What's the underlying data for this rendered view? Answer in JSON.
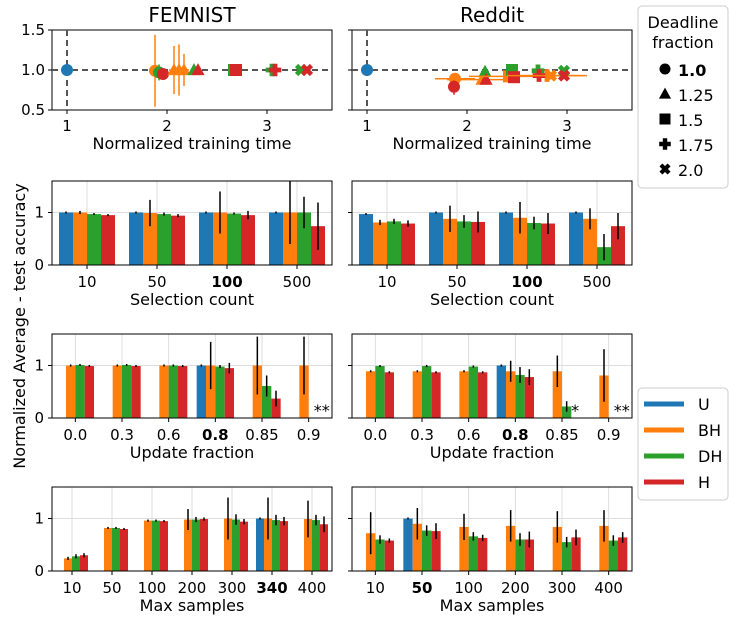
{
  "colors": {
    "U": "#1f77b4",
    "BH": "#ff7f0e",
    "DH": "#2ca02c",
    "H": "#d62728",
    "grid": "#dddddd",
    "refline": "#555555"
  },
  "figure": {
    "ylabel_shared": "Normalized Average - test accuracy",
    "row0_titles": [
      "FEMNIST",
      "Reddit"
    ],
    "deadline_legend": {
      "title_lines": [
        "Deadline",
        "fraction"
      ],
      "items": [
        {
          "marker": "circle",
          "label": "1.0",
          "bold": true
        },
        {
          "marker": "triangle",
          "label": "1.25",
          "bold": false
        },
        {
          "marker": "square",
          "label": "1.5",
          "bold": false
        },
        {
          "marker": "plus",
          "label": "1.75",
          "bold": false
        },
        {
          "marker": "x",
          "label": "2.0",
          "bold": false
        }
      ]
    },
    "method_legend": {
      "items": [
        {
          "key": "U",
          "label": "U"
        },
        {
          "key": "BH",
          "label": "BH"
        },
        {
          "key": "DH",
          "label": "DH"
        },
        {
          "key": "H",
          "label": "H"
        }
      ]
    }
  },
  "chart_data": [
    {
      "type": "scatter",
      "title": "FEMNIST",
      "xlabel": "Normalized training time",
      "ylabel": "",
      "xlim": [
        0.85,
        3.65
      ],
      "ylim": [
        0.5,
        1.5
      ],
      "xticks": [
        "1",
        "2",
        "3"
      ],
      "xtick_values": [
        1,
        2,
        3
      ],
      "yticks": [
        "0.5",
        "1.0",
        "1.5"
      ],
      "ytick_values": [
        0.5,
        1.0,
        1.5
      ],
      "reference_lines": {
        "x": 1.0,
        "y": 1.0
      },
      "points": [
        {
          "method": "U",
          "marker": "circle",
          "x": 1.0,
          "y": 1.0,
          "xerr": 0,
          "yerr": 0
        },
        {
          "method": "BH",
          "marker": "circle",
          "x": 1.88,
          "y": 0.99,
          "xerr": 0.05,
          "yerr": 0.45
        },
        {
          "method": "DH",
          "marker": "circle",
          "x": 1.92,
          "y": 0.97,
          "xerr": 0.04,
          "yerr": 0.1
        },
        {
          "method": "H",
          "marker": "circle",
          "x": 1.96,
          "y": 0.95,
          "xerr": 0.04,
          "yerr": 0.05
        },
        {
          "method": "BH",
          "marker": "triangle",
          "x": 2.07,
          "y": 1.0,
          "xerr": 0.05,
          "yerr": 0.3
        },
        {
          "method": "BH",
          "marker": "triangle",
          "x": 2.12,
          "y": 1.0,
          "xerr": 0.05,
          "yerr": 0.32
        },
        {
          "method": "BH",
          "marker": "triangle",
          "x": 2.17,
          "y": 1.0,
          "xerr": 0.05,
          "yerr": 0.2
        },
        {
          "method": "DH",
          "marker": "triangle",
          "x": 2.27,
          "y": 1.0,
          "xerr": 0.03,
          "yerr": 0.03
        },
        {
          "method": "H",
          "marker": "triangle",
          "x": 2.31,
          "y": 1.0,
          "xerr": 0.03,
          "yerr": 0.03
        },
        {
          "method": "DH",
          "marker": "square",
          "x": 2.67,
          "y": 1.0,
          "xerr": 0.04,
          "yerr": 0.02
        },
        {
          "method": "H",
          "marker": "square",
          "x": 2.69,
          "y": 1.0,
          "xerr": 0.04,
          "yerr": 0.02
        },
        {
          "method": "DH",
          "marker": "plus",
          "x": 3.05,
          "y": 1.0,
          "xerr": 0.04,
          "yerr": 0.02
        },
        {
          "method": "H",
          "marker": "plus",
          "x": 3.08,
          "y": 1.0,
          "xerr": 0.04,
          "yerr": 0.02
        },
        {
          "method": "DH",
          "marker": "x",
          "x": 3.34,
          "y": 1.0,
          "xerr": 0.03,
          "yerr": 0.02
        },
        {
          "method": "H",
          "marker": "x",
          "x": 3.4,
          "y": 1.0,
          "xerr": 0.03,
          "yerr": 0.02
        }
      ]
    },
    {
      "type": "scatter",
      "title": "Reddit",
      "xlabel": "Normalized training time",
      "ylabel": "",
      "xlim": [
        0.85,
        3.65
      ],
      "ylim": [
        0.5,
        1.5
      ],
      "xticks": [
        "1",
        "2",
        "3"
      ],
      "xtick_values": [
        1,
        2,
        3
      ],
      "yticks": [],
      "ytick_values": [
        0.5,
        1.0,
        1.5
      ],
      "reference_lines": {
        "x": 1.0,
        "y": 1.0
      },
      "points": [
        {
          "method": "U",
          "marker": "circle",
          "x": 1.0,
          "y": 1.0,
          "xerr": 0,
          "yerr": 0
        },
        {
          "method": "BH",
          "marker": "circle",
          "x": 1.88,
          "y": 0.89,
          "xerr": 0.2,
          "yerr": 0.05
        },
        {
          "method": "H",
          "marker": "circle",
          "x": 1.87,
          "y": 0.79,
          "xerr": 0.05,
          "yerr": 0.1
        },
        {
          "method": "BH",
          "marker": "triangle",
          "x": 2.15,
          "y": 0.88,
          "xerr": 0.35,
          "yerr": 0.06
        },
        {
          "method": "DH",
          "marker": "triangle",
          "x": 2.18,
          "y": 0.98,
          "xerr": 0.04,
          "yerr": 0.03
        },
        {
          "method": "H",
          "marker": "triangle",
          "x": 2.19,
          "y": 0.88,
          "xerr": 0.04,
          "yerr": 0.04
        },
        {
          "method": "BH",
          "marker": "square",
          "x": 2.42,
          "y": 0.92,
          "xerr": 0.4,
          "yerr": 0.05
        },
        {
          "method": "DH",
          "marker": "square",
          "x": 2.45,
          "y": 1.0,
          "xerr": 0.04,
          "yerr": 0.02
        },
        {
          "method": "H",
          "marker": "square",
          "x": 2.47,
          "y": 0.91,
          "xerr": 0.04,
          "yerr": 0.03
        },
        {
          "method": "BH",
          "marker": "plus",
          "x": 2.8,
          "y": 0.93,
          "xerr": 0.4,
          "yerr": 0.05
        },
        {
          "method": "DH",
          "marker": "plus",
          "x": 2.71,
          "y": 0.99,
          "xerr": 0.04,
          "yerr": 0.02
        },
        {
          "method": "H",
          "marker": "plus",
          "x": 2.72,
          "y": 0.93,
          "xerr": 0.04,
          "yerr": 0.03
        },
        {
          "method": "BH",
          "marker": "x",
          "x": 2.84,
          "y": 0.93,
          "xerr": 0.3,
          "yerr": 0.04
        },
        {
          "method": "DH",
          "marker": "x",
          "x": 2.97,
          "y": 0.99,
          "xerr": 0.03,
          "yerr": 0.02
        },
        {
          "method": "H",
          "marker": "x",
          "x": 2.97,
          "y": 0.93,
          "xerr": 0.03,
          "yerr": 0.03
        }
      ]
    },
    {
      "type": "bar",
      "dataset": "FEMNIST",
      "xlabel": "Selection count",
      "categories": [
        "10",
        "50",
        "100",
        "500"
      ],
      "bold_category": "100",
      "ylim": [
        0,
        1.6
      ],
      "yticks": [
        "0",
        "1"
      ],
      "ytick_values": [
        0,
        1
      ],
      "series": [
        {
          "name": "U",
          "values": [
            1.0,
            1.0,
            1.0,
            1.0
          ],
          "errors": [
            0.0,
            0.0,
            0.0,
            0.0
          ]
        },
        {
          "name": "BH",
          "values": [
            1.0,
            0.99,
            1.0,
            1.0
          ],
          "errors": [
            0.03,
            0.25,
            0.4,
            0.6
          ]
        },
        {
          "name": "DH",
          "values": [
            0.97,
            0.97,
            0.98,
            1.0
          ],
          "errors": [
            0.02,
            0.03,
            0.02,
            0.3
          ]
        },
        {
          "name": "H",
          "values": [
            0.95,
            0.94,
            0.95,
            0.74
          ],
          "errors": [
            0.02,
            0.03,
            0.08,
            0.45
          ]
        }
      ],
      "star_annotations": []
    },
    {
      "type": "bar",
      "dataset": "Reddit",
      "xlabel": "Selection count",
      "categories": [
        "10",
        "50",
        "100",
        "500"
      ],
      "bold_category": "100",
      "ylim": [
        0,
        1.6
      ],
      "yticks": [],
      "ytick_values": [
        0,
        1
      ],
      "series": [
        {
          "name": "U",
          "values": [
            0.97,
            1.0,
            1.0,
            1.0
          ],
          "errors": [
            0.0,
            0.0,
            0.0,
            0.0
          ]
        },
        {
          "name": "BH",
          "values": [
            0.81,
            0.88,
            0.9,
            0.88
          ],
          "errors": [
            0.05,
            0.25,
            0.3,
            0.2
          ]
        },
        {
          "name": "DH",
          "values": [
            0.83,
            0.83,
            0.8,
            0.34
          ],
          "errors": [
            0.05,
            0.12,
            0.12,
            0.25
          ]
        },
        {
          "name": "H",
          "values": [
            0.79,
            0.82,
            0.79,
            0.74
          ],
          "errors": [
            0.06,
            0.2,
            0.2,
            0.25
          ]
        }
      ],
      "star_annotations": []
    },
    {
      "type": "bar",
      "dataset": "FEMNIST",
      "xlabel": "Update fraction",
      "categories": [
        "0.0",
        "0.3",
        "0.6",
        "0.8",
        "0.85",
        "0.9"
      ],
      "bold_category": "0.8",
      "ylim": [
        0,
        1.6
      ],
      "yticks": [
        "0",
        "1"
      ],
      "ytick_values": [
        0,
        1
      ],
      "series": [
        {
          "name": "U",
          "values": [
            null,
            null,
            null,
            1.0,
            null,
            null
          ],
          "errors": [
            0,
            0,
            0,
            0,
            0,
            0
          ]
        },
        {
          "name": "BH",
          "values": [
            1.0,
            1.0,
            1.0,
            1.0,
            1.0,
            1.0
          ],
          "errors": [
            0.02,
            0.02,
            0.02,
            0.45,
            0.55,
            0.55
          ]
        },
        {
          "name": "DH",
          "values": [
            1.01,
            1.01,
            1.0,
            0.98,
            0.61,
            null
          ],
          "errors": [
            0.02,
            0.02,
            0.02,
            0.03,
            0.2,
            0
          ]
        },
        {
          "name": "H",
          "values": [
            0.99,
            0.99,
            0.99,
            0.95,
            0.37,
            null
          ],
          "errors": [
            0.02,
            0.02,
            0.02,
            0.1,
            0.15,
            0
          ]
        }
      ],
      "star_annotations": [
        {
          "category": "0.9",
          "text": "**"
        }
      ]
    },
    {
      "type": "bar",
      "dataset": "Reddit",
      "xlabel": "Update fraction",
      "categories": [
        "0.0",
        "0.3",
        "0.6",
        "0.8",
        "0.85",
        "0.9"
      ],
      "bold_category": "0.8",
      "ylim": [
        0,
        1.6
      ],
      "yticks": [],
      "ytick_values": [
        0,
        1
      ],
      "series": [
        {
          "name": "U",
          "values": [
            null,
            null,
            null,
            1.0,
            null,
            null
          ],
          "errors": [
            0,
            0,
            0,
            0,
            0,
            0
          ]
        },
        {
          "name": "BH",
          "values": [
            0.89,
            0.89,
            0.89,
            0.89,
            0.89,
            0.81
          ],
          "errors": [
            0.02,
            0.02,
            0.02,
            0.2,
            0.3,
            0.5
          ]
        },
        {
          "name": "DH",
          "values": [
            0.99,
            0.99,
            0.98,
            0.82,
            0.22,
            null
          ],
          "errors": [
            0.02,
            0.02,
            0.02,
            0.15,
            0.1,
            0
          ]
        },
        {
          "name": "H",
          "values": [
            0.87,
            0.87,
            0.87,
            0.78,
            null,
            null
          ],
          "errors": [
            0.02,
            0.02,
            0.02,
            0.15,
            0,
            0
          ]
        }
      ],
      "star_annotations": [
        {
          "category": "0.85",
          "text": "*"
        },
        {
          "category": "0.9",
          "text": "**"
        }
      ]
    },
    {
      "type": "bar",
      "dataset": "FEMNIST",
      "xlabel": "Max samples",
      "categories": [
        "10",
        "50",
        "100",
        "200",
        "300",
        "340",
        "400"
      ],
      "bold_category": "340",
      "ylim": [
        0,
        1.6
      ],
      "yticks": [
        "0",
        "1"
      ],
      "ytick_values": [
        0,
        1
      ],
      "series": [
        {
          "name": "U",
          "values": [
            null,
            null,
            null,
            null,
            null,
            1.0,
            null
          ],
          "errors": [
            0,
            0,
            0,
            0,
            0,
            0,
            0
          ]
        },
        {
          "name": "BH",
          "values": [
            0.24,
            0.82,
            0.96,
            0.98,
            1.0,
            1.0,
            0.99
          ],
          "errors": [
            0.03,
            0.02,
            0.02,
            0.2,
            0.4,
            0.4,
            0.35
          ]
        },
        {
          "name": "DH",
          "values": [
            0.28,
            0.82,
            0.96,
            0.98,
            0.98,
            0.97,
            0.97
          ],
          "errors": [
            0.04,
            0.02,
            0.02,
            0.05,
            0.1,
            0.1,
            0.1
          ]
        },
        {
          "name": "H",
          "values": [
            0.3,
            0.8,
            0.95,
            0.99,
            0.94,
            0.95,
            0.89
          ],
          "errors": [
            0.04,
            0.02,
            0.02,
            0.03,
            0.05,
            0.08,
            0.15
          ]
        }
      ],
      "star_annotations": []
    },
    {
      "type": "bar",
      "dataset": "Reddit",
      "xlabel": "Max samples",
      "categories": [
        "10",
        "50",
        "100",
        "200",
        "300",
        "400"
      ],
      "bold_category": "50",
      "ylim": [
        0,
        1.6
      ],
      "yticks": [],
      "ytick_values": [
        0,
        1
      ],
      "series": [
        {
          "name": "U",
          "values": [
            null,
            1.0,
            null,
            null,
            null,
            null
          ],
          "errors": [
            0,
            0,
            0,
            0,
            0,
            0
          ]
        },
        {
          "name": "BH",
          "values": [
            0.72,
            0.9,
            0.84,
            0.86,
            0.84,
            0.86
          ],
          "errors": [
            0.4,
            0.3,
            0.25,
            0.3,
            0.3,
            0.3
          ]
        },
        {
          "name": "DH",
          "values": [
            0.6,
            0.77,
            0.66,
            0.6,
            0.55,
            0.58
          ],
          "errors": [
            0.08,
            0.1,
            0.08,
            0.12,
            0.1,
            0.1
          ]
        },
        {
          "name": "H",
          "values": [
            0.58,
            0.76,
            0.63,
            0.6,
            0.64,
            0.64
          ],
          "errors": [
            0.04,
            0.15,
            0.06,
            0.15,
            0.15,
            0.1
          ]
        }
      ],
      "star_annotations": []
    }
  ]
}
